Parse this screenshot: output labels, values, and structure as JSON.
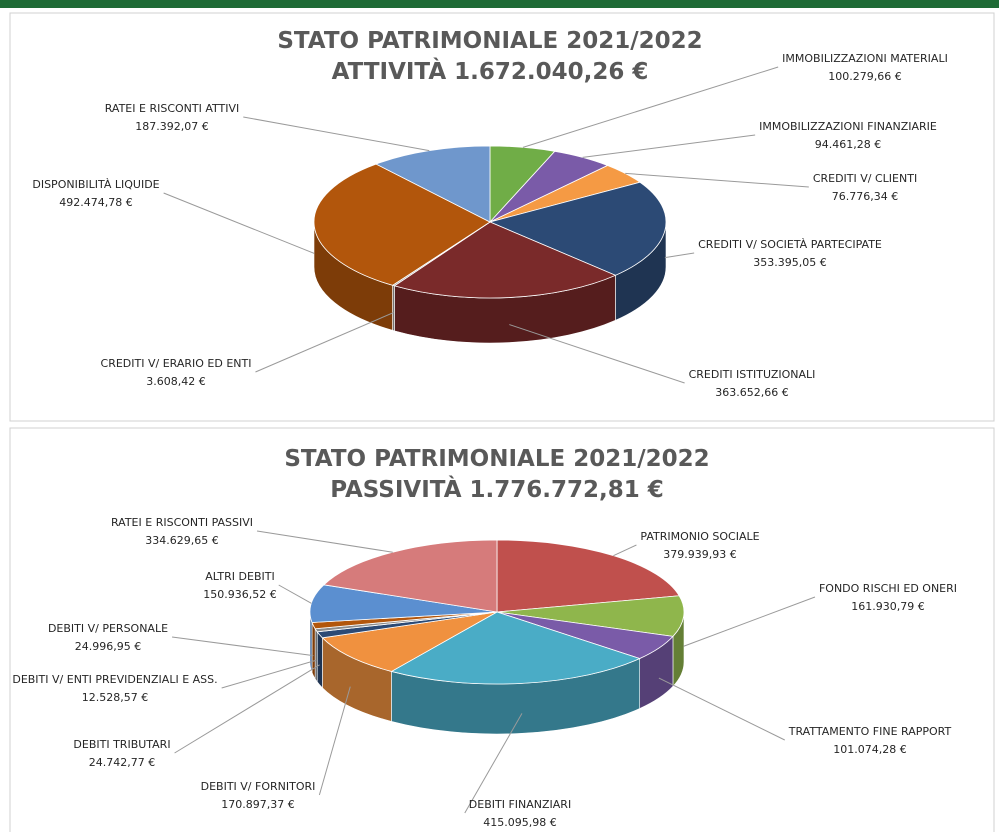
{
  "chart_data": [
    {
      "type": "pie3d",
      "title": "STATO PATRIMONIALE 2021/2022",
      "subtitle": "ATTIVITÀ 1.672.040,26 €",
      "categories": [
        "IMMOBILIZZAZIONI MATERIALI",
        "IMMOBILIZZAZIONI FINANZIARIE",
        "CREDITI V/ CLIENTI",
        "CREDITI V/ SOCIETÀ PARTECIPATE",
        "CREDITI ISTITUZIONALI",
        "CREDITI V/ ERARIO ED ENTI",
        "DISPONIBILITÀ LIQUIDE",
        "RATEI E RISCONTI ATTIVI"
      ],
      "values": [
        100279.66,
        94461.28,
        76776.34,
        353395.05,
        363652.66,
        3608.42,
        492474.78,
        187392.07
      ],
      "value_labels": [
        "100.279,66 €",
        "94.461,28 €",
        "76.776,34 €",
        "353.395,05 €",
        "363.652,66 €",
        "3.608,42 €",
        "492.474,78 €",
        "187.392,07 €"
      ],
      "colors": [
        "#70ad47",
        "#7a5ba8",
        "#f59a44",
        "#2c4a75",
        "#7a2a2a",
        "#a5a5a5",
        "#b2560c",
        "#6f97cc"
      ]
    },
    {
      "type": "pie3d",
      "title": "STATO PATRIMONIALE 2021/2022",
      "subtitle": "PASSIVITÀ 1.776.772,81 €",
      "categories": [
        "PATRIMONIO SOCIALE",
        "FONDO RISCHI ED ONERI",
        "TRATTAMENTO FINE RAPPORT",
        "DEBITI FINANZIARI",
        "DEBITI V/ FORNITORI",
        "DEBITI TRIBUTARI",
        "DEBITI V/ ENTI PREVIDENZIALI E ASS.",
        "DEBITI V/ PERSONALE",
        "ALTRI DEBITI",
        "RATEI E RISCONTI PASSIVI"
      ],
      "values": [
        379939.93,
        161930.79,
        101074.28,
        415095.98,
        170897.37,
        24742.77,
        12528.57,
        24996.95,
        150936.52,
        334629.65
      ],
      "value_labels": [
        "379.939,93 €",
        "161.930,79 €",
        "101.074,28 €",
        "415.095,98 €",
        "170.897,37 €",
        "24.742,77 €",
        "12.528,57 €",
        "24.996,95 €",
        "150.936,52 €",
        "334.629,65 €"
      ],
      "colors": [
        "#c0504d",
        "#8fb64c",
        "#7a5ba8",
        "#4aacc6",
        "#f0913f",
        "#2c4a75",
        "#8c8c8c",
        "#b2560c",
        "#5b8fd0",
        "#d67b7b"
      ]
    }
  ]
}
